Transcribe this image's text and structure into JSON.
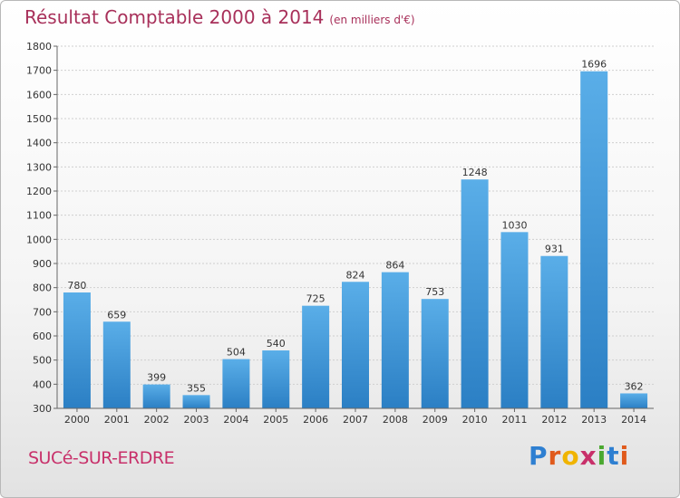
{
  "page": {
    "title": "Résultat Comptable 2000 à 2014",
    "unit": "(en milliers d'€)",
    "commune": "SUCé-SUR-ERDRE",
    "logo": {
      "letters": [
        "P",
        "r",
        "o",
        "x",
        "i",
        "t",
        "i"
      ],
      "colors": [
        "#2e7fd1",
        "#e05a1c",
        "#f0b400",
        "#c8306a",
        "#4aa82f",
        "#2e7fd1",
        "#e05a1c"
      ]
    },
    "colors": {
      "bar": "#4a9fdf",
      "bar_dark": "#2b7fc4",
      "title": "#a8305a"
    }
  },
  "chart_data": {
    "type": "bar",
    "title": "Résultat Comptable 2000 à 2014",
    "ylabel": "(en milliers d'€)",
    "xlabel": "",
    "categories": [
      "2000",
      "2001",
      "2002",
      "2003",
      "2004",
      "2005",
      "2006",
      "2007",
      "2008",
      "2009",
      "2010",
      "2011",
      "2012",
      "2013",
      "2014"
    ],
    "values": [
      780,
      659,
      399,
      355,
      504,
      540,
      725,
      824,
      864,
      753,
      1248,
      1030,
      931,
      1696,
      362
    ],
    "ylim": [
      300,
      1800
    ],
    "yticks": [
      300,
      400,
      500,
      600,
      700,
      800,
      900,
      1000,
      1100,
      1200,
      1300,
      1400,
      1500,
      1600,
      1700,
      1800
    ],
    "grid": true
  }
}
